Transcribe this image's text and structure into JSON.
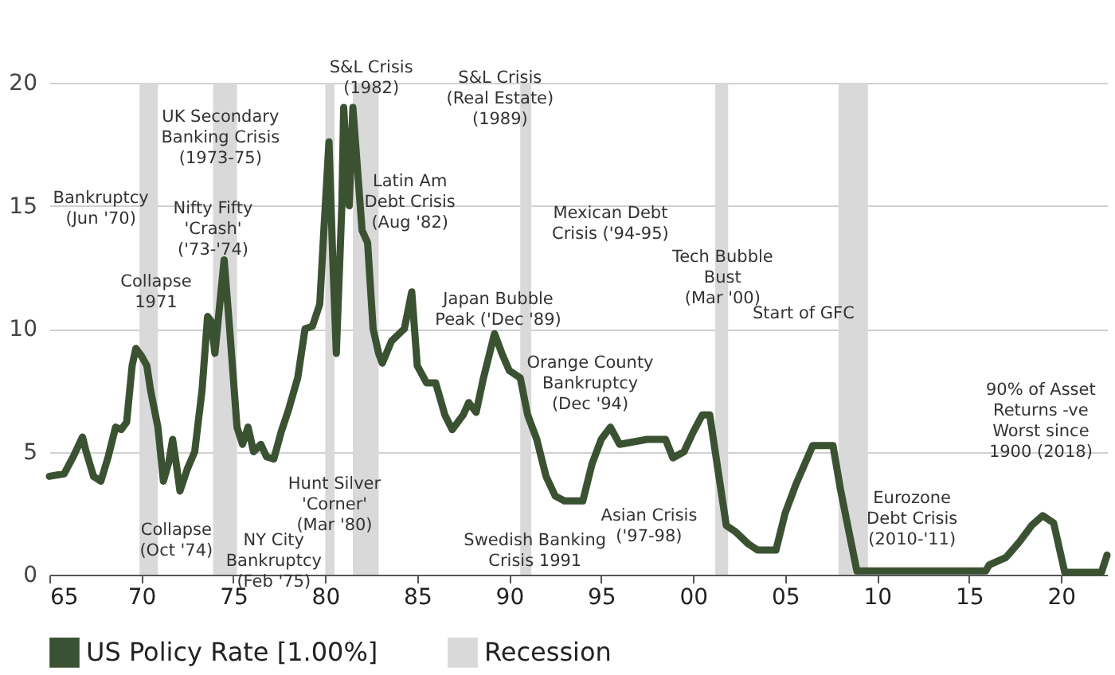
{
  "chart_data": {
    "type": "line",
    "x": [
      1965,
      1965.8,
      1966.3,
      1966.8,
      1967.0,
      1967.4,
      1967.8,
      1968.2,
      1968.6,
      1968.9,
      1969.2,
      1969.5,
      1969.7,
      1970.0,
      1970.3,
      1970.5,
      1970.9,
      1971.2,
      1971.5,
      1971.7,
      1971.9,
      1972.1,
      1972.5,
      1972.9,
      1973.3,
      1973.6,
      1973.8,
      1974.0,
      1974.5,
      1974.8,
      1975.2,
      1975.5,
      1975.8,
      1976.1,
      1976.5,
      1976.8,
      1977.2,
      1977.6,
      1978.0,
      1978.5,
      1978.9,
      1979.3,
      1979.7,
      1979.9,
      1980.2,
      1980.4,
      1980.6,
      1980.9,
      1981.0,
      1981.3,
      1981.5,
      1981.8,
      1982.0,
      1982.3,
      1982.6,
      1982.9,
      1983.1,
      1983.6,
      1984.3,
      1984.7,
      1985.0,
      1985.5,
      1986.0,
      1986.5,
      1986.9,
      1987.5,
      1987.8,
      1988.2,
      1988.6,
      1989.2,
      1989.6,
      1990.0,
      1990.6,
      1991.0,
      1991.5,
      1992.0,
      1992.5,
      1993.0,
      1994.0,
      1994.5,
      1995.0,
      1995.5,
      1996.0,
      1997.5,
      1998.5,
      1998.9,
      1999.5,
      2000.0,
      2000.5,
      2000.9,
      2001.3,
      2001.8,
      2002.3,
      2003.0,
      2003.5,
      2004.5,
      2005.0,
      2005.6,
      2006.5,
      2007.6,
      2008.0,
      2008.4,
      2008.9,
      2015.9,
      2016.1,
      2017.0,
      2017.7,
      2018.4,
      2019.0,
      2019.6,
      2020.2,
      2022.2,
      2022.5
    ],
    "series": [
      {
        "name": "US Policy Rate [1.00%]",
        "color": "#3b5232",
        "values": [
          4.0,
          4.1,
          4.8,
          5.6,
          5.0,
          4.0,
          3.8,
          4.8,
          6.0,
          5.9,
          6.2,
          8.5,
          9.2,
          8.9,
          8.5,
          7.5,
          6.0,
          3.8,
          4.6,
          5.5,
          4.5,
          3.4,
          4.3,
          5.0,
          7.5,
          10.5,
          10.3,
          9.0,
          12.8,
          10.0,
          6.0,
          5.3,
          6.0,
          5.0,
          5.3,
          4.8,
          4.7,
          5.8,
          6.7,
          8.0,
          10.0,
          10.1,
          11.0,
          13.7,
          17.6,
          13.0,
          9.0,
          15.0,
          19.0,
          15.0,
          19.0,
          16.0,
          14.0,
          13.5,
          10.0,
          9.0,
          8.6,
          9.5,
          10.0,
          11.5,
          8.5,
          7.8,
          7.8,
          6.5,
          5.9,
          6.5,
          7.0,
          6.6,
          8.0,
          9.8,
          9.0,
          8.3,
          8.0,
          6.5,
          5.5,
          4.0,
          3.2,
          3.0,
          3.0,
          4.5,
          5.5,
          6.0,
          5.3,
          5.5,
          5.5,
          4.75,
          5.0,
          5.8,
          6.5,
          6.5,
          4.5,
          2.0,
          1.75,
          1.25,
          1.0,
          1.0,
          2.5,
          3.7,
          5.25,
          5.25,
          3.5,
          2.0,
          0.15,
          0.15,
          0.4,
          0.7,
          1.3,
          2.0,
          2.4,
          2.1,
          0.1,
          0.1,
          0.8
        ]
      }
    ],
    "xlim": [
      1965,
      2022.5
    ],
    "xticks": [
      {
        "value": 1965,
        "label": "65"
      },
      {
        "value": 1970,
        "label": "70"
      },
      {
        "value": 1975,
        "label": "75"
      },
      {
        "value": 1980,
        "label": "80"
      },
      {
        "value": 1985,
        "label": "85"
      },
      {
        "value": 1990,
        "label": "90"
      },
      {
        "value": 1995,
        "label": "95"
      },
      {
        "value": 2000,
        "label": "00"
      },
      {
        "value": 2005,
        "label": "05"
      },
      {
        "value": 2010,
        "label": "10"
      },
      {
        "value": 2015,
        "label": "15"
      },
      {
        "value": 2020,
        "label": "20"
      }
    ],
    "ylim": [
      0,
      20
    ],
    "yticks": [
      0,
      5,
      10,
      15,
      20
    ],
    "grid": "y",
    "legend": "bottom",
    "marker": "none",
    "line_style": "solid",
    "bands": [
      {
        "axis": "x",
        "from": 1969.9,
        "to": 1970.9,
        "label": "Recession",
        "color": "#d9d9d9"
      },
      {
        "axis": "x",
        "from": 1973.9,
        "to": 1975.2,
        "color": "#d9d9d9"
      },
      {
        "axis": "x",
        "from": 1980.0,
        "to": 1980.5,
        "color": "#d9d9d9"
      },
      {
        "axis": "x",
        "from": 1981.5,
        "to": 1982.9,
        "color": "#d9d9d9"
      },
      {
        "axis": "x",
        "from": 1990.6,
        "to": 1991.2,
        "color": "#d9d9d9"
      },
      {
        "axis": "x",
        "from": 2001.2,
        "to": 2001.9,
        "color": "#d9d9d9"
      },
      {
        "axis": "x",
        "from": 2007.9,
        "to": 2009.5,
        "color": "#d9d9d9"
      }
    ],
    "annotations": [
      "Bankruptcy\n(Jun '70)",
      "UK Secondary\nBanking Crisis\n(1973-75)",
      "Nifty Fifty\n'Crash'\n('73-'74)",
      "Collapse\n1971",
      "Collapse\n(Oct '74)",
      "NY City\nBankruptcy\n(Feb '75)",
      "S&L Crisis\n(1982)",
      "S&L Crisis\n(Real Estate)\n(1989)",
      "Latin Am\nDebt Crisis\n(Aug '82)",
      "Hunt Silver\n'Corner'\n(Mar '80)",
      "Japan Bubble\nPeak ('Dec '89)",
      "Swedish Banking\nCrisis 1991",
      "Mexican Debt\nCrisis ('94-95)",
      "Orange County\nBankruptcy\n(Dec '94)",
      "Asian Crisis\n('97-98)",
      "Tech Bubble\nBust\n(Mar '00)",
      "Start of GFC",
      "Eurozone\nDebt Crisis\n(2010-'11)",
      "90% of Asset\nReturns -ve\nWorst since\n1900 (2018)"
    ]
  }
}
